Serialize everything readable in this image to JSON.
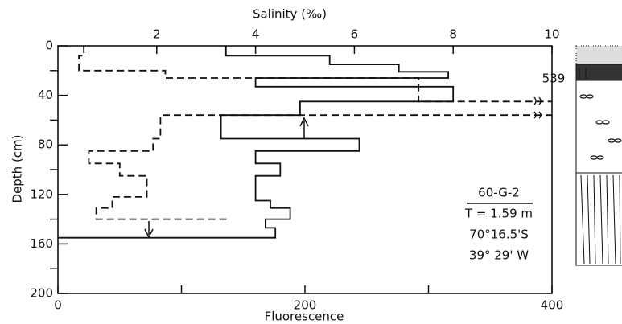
{
  "chart_data": {
    "type": "profile",
    "title": "Salinity (‰)",
    "x_label": "Fluorescence",
    "y_label": "Depth (cm)",
    "xlim": [
      0,
      400
    ],
    "xticks": [
      0,
      200,
      400
    ],
    "x_minor_ticks": [
      100,
      300
    ],
    "x2lim": [
      0,
      10
    ],
    "x2ticks": [
      2,
      4,
      6,
      8,
      10
    ],
    "ylim": [
      0,
      200
    ],
    "yticks": [
      0,
      40,
      80,
      120,
      160,
      200
    ],
    "y_minor_ticks": [
      20,
      60,
      100,
      140,
      180
    ],
    "y_inverted": true,
    "series": [
      {
        "axis": "x2",
        "style": "solid",
        "color": "#111111",
        "values": [
          3.4,
          3.4,
          5.5,
          5.5,
          6.9,
          6.9,
          7.9,
          7.9,
          4.0,
          4.0,
          8.0,
          8.0,
          4.9,
          4.9,
          3.3,
          3.3,
          6.1,
          6.1,
          4.0,
          4.0,
          4.5,
          4.5,
          4.0,
          4.0,
          4.3,
          4.3,
          4.7,
          4.7,
          4.2,
          4.2,
          4.4,
          4.4,
          0
        ],
        "depth": [
          0,
          8,
          8,
          15,
          15,
          21,
          21,
          26,
          26,
          33,
          33,
          45,
          45,
          56,
          56,
          75,
          75,
          85,
          85,
          95,
          95,
          105,
          105,
          125,
          125,
          131,
          131,
          140,
          140,
          147,
          147,
          155,
          155
        ]
      },
      {
        "axis": "x",
        "style": "dashed",
        "color": "#111111",
        "values": [
          21,
          21,
          17,
          17,
          87,
          87,
          292,
          292,
          539,
          539,
          83,
          83,
          77,
          77,
          25,
          25,
          50,
          50,
          72,
          72,
          44,
          44,
          31,
          31,
          137
        ],
        "depth": [
          0,
          8,
          8,
          20,
          20,
          26,
          26,
          45,
          45,
          56,
          56,
          75,
          75,
          85,
          85,
          95,
          95,
          105,
          105,
          122,
          122,
          131,
          131,
          140,
          140
        ]
      }
    ],
    "annotations": [
      "539"
    ],
    "station": {
      "id": "60-G-2",
      "length": "T = 1.59 m",
      "latitude": "70°16.5'S",
      "longitude": "39° 29' W"
    }
  }
}
